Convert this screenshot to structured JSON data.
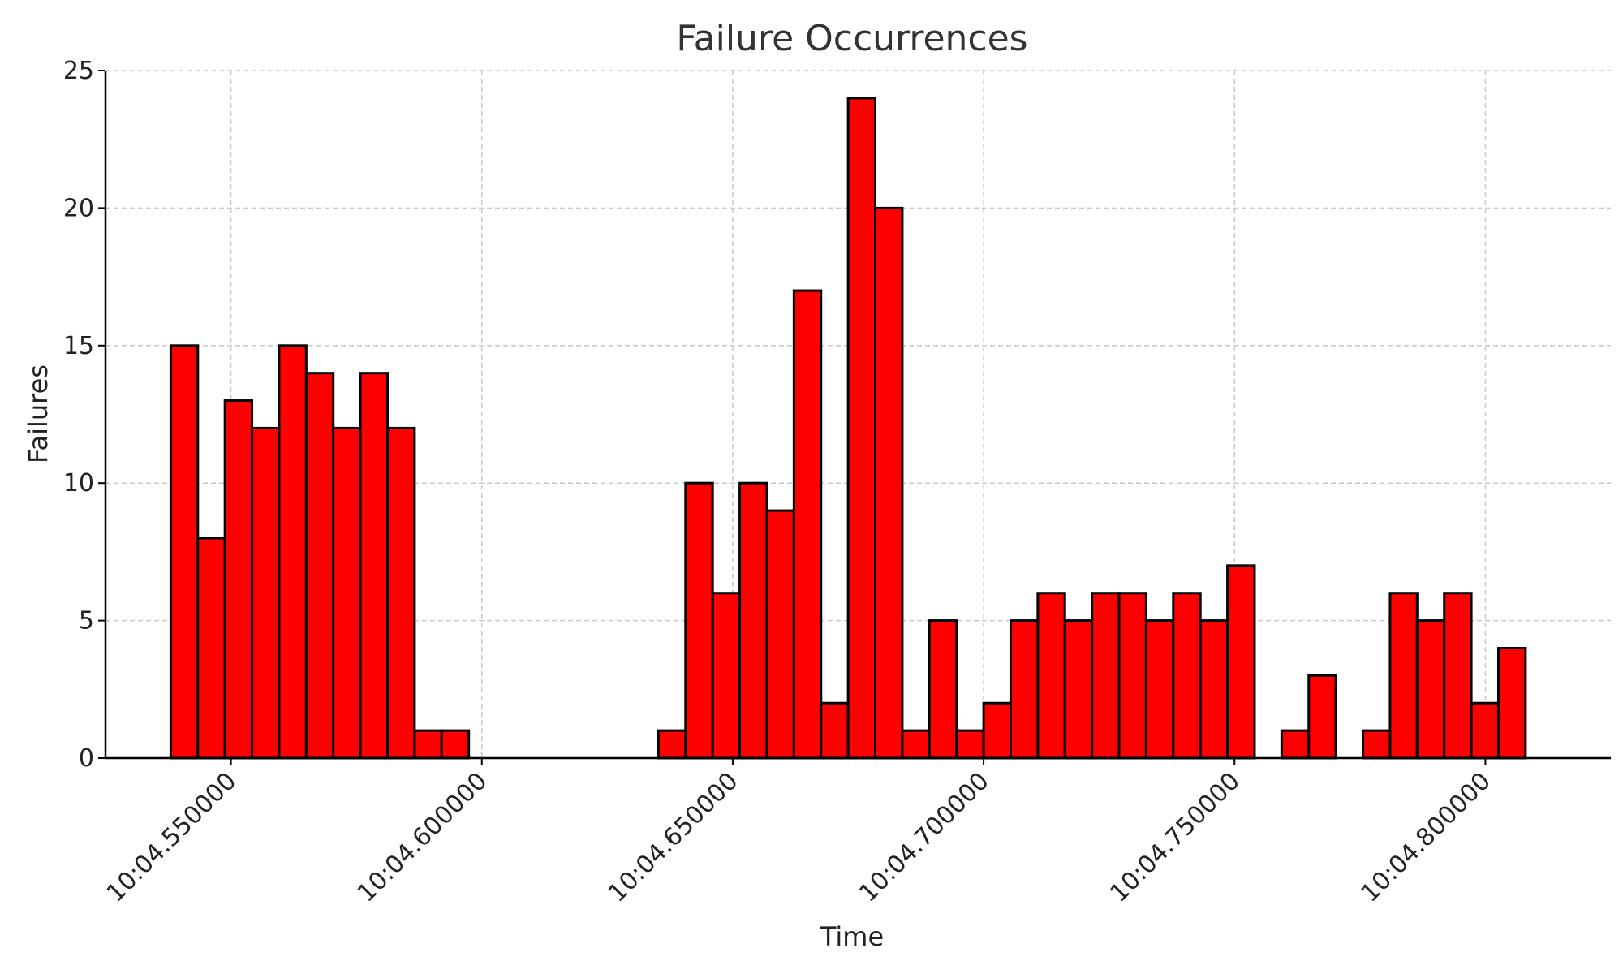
{
  "chart_data": {
    "type": "bar",
    "title": "Failure Occurrences",
    "xlabel": "Time",
    "ylabel": "Failures",
    "ylim": [
      0,
      25
    ],
    "xlim": [
      0.525,
      0.825
    ],
    "y_ticks": [
      0,
      5,
      10,
      15,
      20,
      25
    ],
    "x_ticks": [
      {
        "value": 0.55,
        "label": "10:04.550000"
      },
      {
        "value": 0.6,
        "label": "10:04.600000"
      },
      {
        "value": 0.65,
        "label": "10:04.650000"
      },
      {
        "value": 0.7,
        "label": "10:04.700000"
      },
      {
        "value": 0.75,
        "label": "10:04.750000"
      },
      {
        "value": 0.8,
        "label": "10:04.800000"
      }
    ],
    "bin_start": 0.538,
    "bin_width": 0.0054,
    "values": [
      15,
      8,
      13,
      12,
      15,
      14,
      12,
      14,
      12,
      1,
      1,
      0,
      0,
      0,
      0,
      0,
      0,
      0,
      1,
      10,
      6,
      10,
      9,
      17,
      2,
      24,
      20,
      1,
      5,
      1,
      2,
      5,
      6,
      5,
      6,
      6,
      5,
      6,
      5,
      7,
      0,
      1,
      3,
      0,
      1,
      6,
      5,
      6,
      2,
      4
    ],
    "grid": true,
    "colors": {
      "bar": "#ff0000",
      "edge": "#000000",
      "grid": "#c8c8c8"
    }
  }
}
